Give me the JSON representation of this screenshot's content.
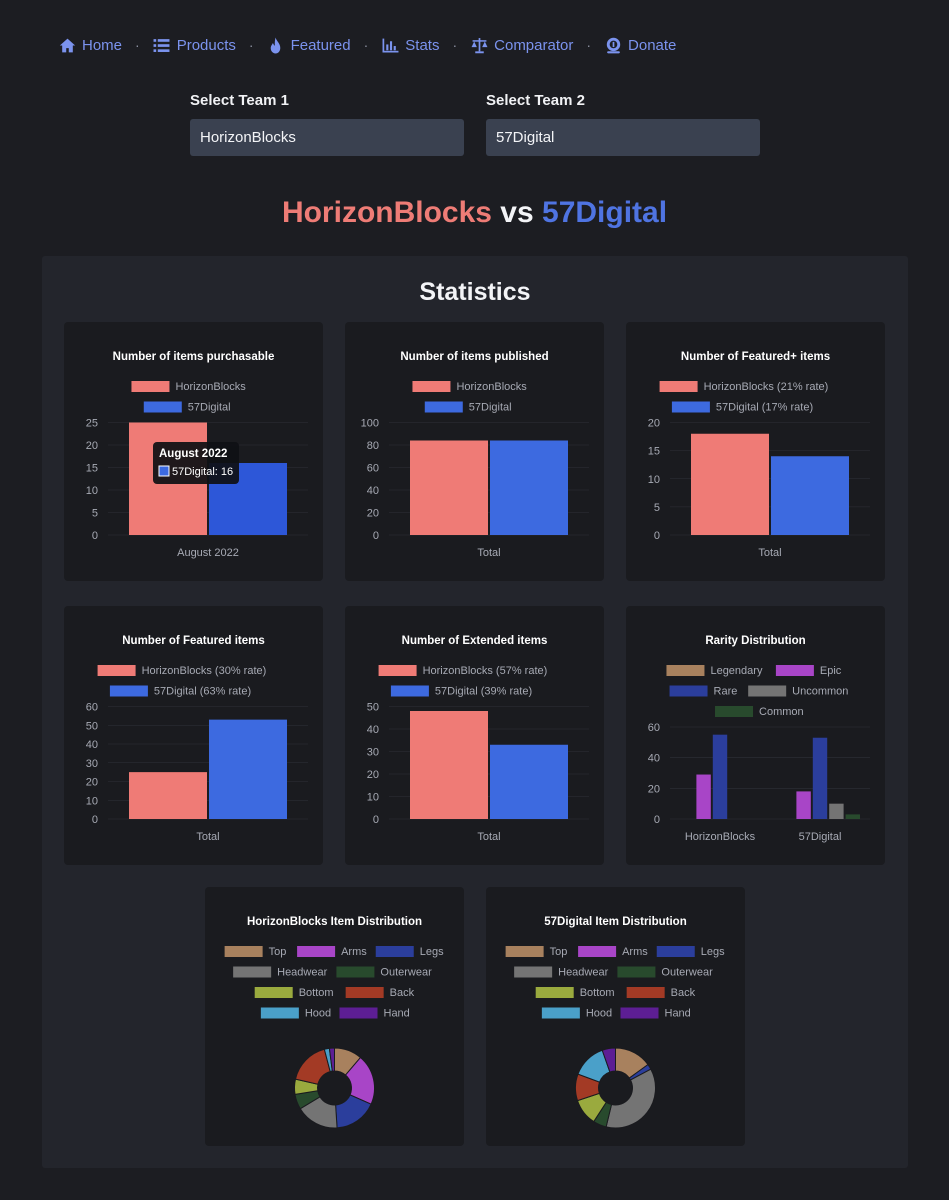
{
  "nav": {
    "items": [
      {
        "label": "Home",
        "icon": "home-icon"
      },
      {
        "label": "Products",
        "icon": "list-icon"
      },
      {
        "label": "Featured",
        "icon": "fire-icon"
      },
      {
        "label": "Stats",
        "icon": "chart-icon"
      },
      {
        "label": "Comparator",
        "icon": "scale-icon"
      },
      {
        "label": "Donate",
        "icon": "coin-icon"
      }
    ],
    "separator": "·"
  },
  "team1": {
    "label": "Select Team 1",
    "value": "HorizonBlocks"
  },
  "team2": {
    "label": "Select Team 2",
    "value": "57Digital"
  },
  "headline": {
    "team1": "HorizonBlocks",
    "vs": " vs ",
    "team2": "57Digital"
  },
  "stats": {
    "title": "Statistics"
  },
  "colors": {
    "team1": "#ef7b76",
    "team2": "#3d6ae0",
    "team2_tooltip_active": "#2d57d8",
    "card_bg": "#1a1b1f",
    "text": "#e8e9ee",
    "muted": "#a7aab4",
    "grid": "#2f3138",
    "rarity": {
      "Legendary": "#a8815e",
      "Epic": "#a845c7",
      "Rare": "#2b3e9c",
      "Uncommon": "#747474",
      "Common": "#284a2d"
    },
    "items": {
      "Top": "#a8815e",
      "Arms": "#a845c7",
      "Legs": "#2b3e9c",
      "Headwear": "#747474",
      "Outerwear": "#284a2d",
      "Bottom": "#9aaa3e",
      "Back": "#a33a25",
      "Hood": "#4aa0c9",
      "Hand": "#5d1e94"
    }
  },
  "chart_data": [
    {
      "type": "bar",
      "title": "Number of items purchasable",
      "categories": [
        "August 2022"
      ],
      "series": [
        {
          "name": "HorizonBlocks",
          "values": [
            25
          ]
        },
        {
          "name": "57Digital",
          "values": [
            16
          ]
        }
      ],
      "ylim": [
        0,
        25
      ],
      "ticks": [
        0,
        5,
        10,
        15,
        20,
        25
      ],
      "tooltip": {
        "title": "August 2022",
        "label": "57Digital: 16"
      }
    },
    {
      "type": "bar",
      "title": "Number of items published",
      "categories": [
        "Total"
      ],
      "series": [
        {
          "name": "HorizonBlocks",
          "values": [
            84
          ]
        },
        {
          "name": "57Digital",
          "values": [
            84
          ]
        }
      ],
      "ylim": [
        0,
        100
      ],
      "ticks": [
        0,
        20,
        40,
        60,
        80,
        100
      ]
    },
    {
      "type": "bar",
      "title": "Number of Featured+ items",
      "categories": [
        "Total"
      ],
      "series": [
        {
          "name": "HorizonBlocks (21% rate)",
          "values": [
            18
          ]
        },
        {
          "name": "57Digital (17% rate)",
          "values": [
            14
          ]
        }
      ],
      "ylim": [
        0,
        20
      ],
      "ticks": [
        0,
        5,
        10,
        15,
        20
      ]
    },
    {
      "type": "bar",
      "title": "Number of Featured items",
      "categories": [
        "Total"
      ],
      "series": [
        {
          "name": "HorizonBlocks (30% rate)",
          "values": [
            25
          ]
        },
        {
          "name": "57Digital (63% rate)",
          "values": [
            53
          ]
        }
      ],
      "ylim": [
        0,
        60
      ],
      "ticks": [
        0,
        10,
        20,
        30,
        40,
        50,
        60
      ]
    },
    {
      "type": "bar",
      "title": "Number of Extended items",
      "categories": [
        "Total"
      ],
      "series": [
        {
          "name": "HorizonBlocks (57% rate)",
          "values": [
            48
          ]
        },
        {
          "name": "57Digital (39% rate)",
          "values": [
            33
          ]
        }
      ],
      "ylim": [
        0,
        50
      ],
      "ticks": [
        0,
        10,
        20,
        30,
        40,
        50
      ]
    },
    {
      "type": "bar",
      "title": "Rarity Distribution",
      "categories": [
        "HorizonBlocks",
        "57Digital"
      ],
      "series": [
        {
          "name": "Legendary",
          "values": [
            0,
            0
          ]
        },
        {
          "name": "Epic",
          "values": [
            29,
            18
          ]
        },
        {
          "name": "Rare",
          "values": [
            55,
            53
          ]
        },
        {
          "name": "Uncommon",
          "values": [
            0,
            10
          ]
        },
        {
          "name": "Common",
          "values": [
            0,
            3
          ]
        }
      ],
      "ylim": [
        0,
        60
      ],
      "ticks": [
        0,
        20,
        40,
        60
      ]
    },
    {
      "type": "pie",
      "title": "HorizonBlocks Item Distribution",
      "labels": [
        "Top",
        "Arms",
        "Legs",
        "Headwear",
        "Outerwear",
        "Bottom",
        "Back",
        "Hood",
        "Hand"
      ],
      "values": [
        11,
        20,
        17,
        17,
        6,
        6,
        17,
        2,
        2
      ]
    },
    {
      "type": "pie",
      "title": "57Digital Item Distribution",
      "labels": [
        "Top",
        "Arms",
        "Legs",
        "Headwear",
        "Outerwear",
        "Bottom",
        "Back",
        "Hood",
        "Hand"
      ],
      "values": [
        14,
        0,
        2,
        34,
        5,
        10,
        10,
        13,
        5
      ]
    }
  ]
}
